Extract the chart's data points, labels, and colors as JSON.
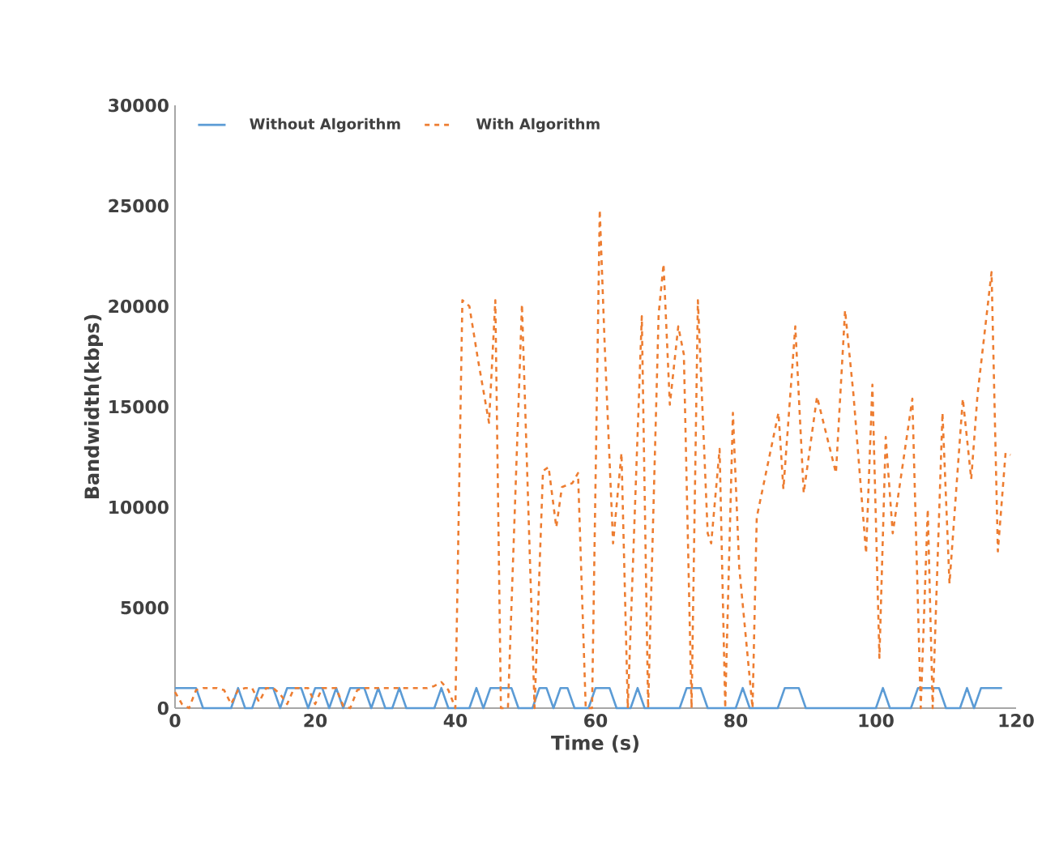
{
  "chart_data": {
    "type": "line",
    "xlabel": "Time (s)",
    "ylabel": "Bandwidth(kbps)",
    "xlim": [
      0,
      120
    ],
    "ylim": [
      0,
      30000
    ],
    "xticks": [
      0,
      20,
      40,
      60,
      80,
      100,
      120
    ],
    "yticks": [
      0,
      5000,
      10000,
      15000,
      20000,
      25000,
      30000
    ],
    "legend": "top left",
    "grid": false,
    "marker": "none",
    "series": [
      {
        "name": "Without Algorithm",
        "color": "#5b9bd5",
        "line_style": "solid",
        "x": [
          0,
          3,
          4,
          8,
          9,
          10,
          11,
          12,
          14,
          15,
          16,
          18,
          19,
          20,
          21,
          22,
          23,
          24,
          25,
          27,
          28,
          29,
          30,
          31,
          32,
          33,
          37,
          38,
          39,
          42,
          43,
          44,
          45,
          48,
          49,
          51,
          52,
          53,
          54,
          55,
          56,
          57,
          59,
          60,
          62,
          63,
          65,
          66,
          67,
          72,
          73,
          75,
          76,
          80,
          81,
          82,
          86,
          87,
          89,
          90,
          100,
          101,
          102,
          105,
          106,
          109,
          110,
          112,
          113,
          114,
          115,
          118
        ],
        "values": [
          1000,
          1000,
          0,
          0,
          1000,
          0,
          0,
          1000,
          1000,
          0,
          1000,
          1000,
          0,
          1000,
          1000,
          0,
          1000,
          0,
          1000,
          1000,
          0,
          1000,
          0,
          0,
          1000,
          0,
          0,
          1000,
          0,
          0,
          1000,
          0,
          1000,
          1000,
          0,
          0,
          1000,
          1000,
          0,
          1000,
          1000,
          0,
          0,
          1000,
          1000,
          0,
          0,
          1000,
          0,
          0,
          1000,
          1000,
          0,
          0,
          1000,
          0,
          0,
          1000,
          1000,
          0,
          0,
          1000,
          0,
          0,
          1000,
          1000,
          0,
          0,
          1000,
          0,
          1000,
          1000
        ]
      },
      {
        "name": "With Algorithm",
        "color": "#ed7d31",
        "line_style": "dashed",
        "x": [
          0,
          1,
          2,
          3,
          4,
          5,
          6,
          7,
          8,
          9,
          10,
          11,
          12,
          13,
          14,
          15,
          16,
          17,
          18,
          19,
          20,
          21,
          22,
          23,
          24,
          25,
          26,
          27,
          28,
          29,
          30,
          31,
          32,
          33,
          34,
          35,
          36,
          37,
          38,
          39,
          40,
          41,
          42,
          43.2,
          44.8,
          45.7,
          46.5,
          47.5,
          49.5,
          51.3,
          52.5,
          53.3,
          54.4,
          55.2,
          56.7,
          57.5,
          58.6,
          59.5,
          60.6,
          61.3,
          62.5,
          63.7,
          64.6,
          66.6,
          67.5,
          69,
          69.7,
          70.6,
          71.8,
          72.6,
          73.7,
          74.6,
          76,
          76.5,
          77.7,
          78.5,
          79.6,
          80.5,
          82.4,
          83,
          86.1,
          86.8,
          88.5,
          89.7,
          91.6,
          94.3,
          95.6,
          96.8,
          98.6,
          99.5,
          100.5,
          101.4,
          102.4,
          105.2,
          106.4,
          107.4,
          108.1,
          109.5,
          110.5,
          112.4,
          113.6,
          114.5,
          116.5,
          117.4,
          118.5,
          119.2
        ],
        "values": [
          800,
          200,
          0,
          900,
          1000,
          1000,
          1000,
          900,
          200,
          900,
          1000,
          1000,
          300,
          1000,
          1000,
          700,
          200,
          1000,
          1000,
          1000,
          200,
          1000,
          1000,
          1000,
          100,
          0,
          900,
          1000,
          1000,
          1000,
          1000,
          1000,
          1000,
          1000,
          1000,
          1000,
          1000,
          1100,
          1300,
          900,
          0,
          20300,
          20000,
          17400,
          14200,
          20300,
          0,
          0,
          20100,
          0,
          11800,
          12000,
          9000,
          11000,
          11200,
          11700,
          0,
          0,
          24800,
          18100,
          8200,
          12700,
          0,
          19500,
          0,
          19600,
          22100,
          15100,
          19000,
          17600,
          0,
          20300,
          8700,
          8200,
          12900,
          0,
          14700,
          7000,
          0,
          9500,
          14700,
          10900,
          19000,
          10700,
          15500,
          11700,
          19800,
          15600,
          7700,
          16100,
          2500,
          13500,
          8700,
          15400,
          0,
          9900,
          0,
          14700,
          6200,
          15400,
          11400,
          15600,
          21700,
          7800,
          12700,
          12600
        ]
      }
    ]
  }
}
